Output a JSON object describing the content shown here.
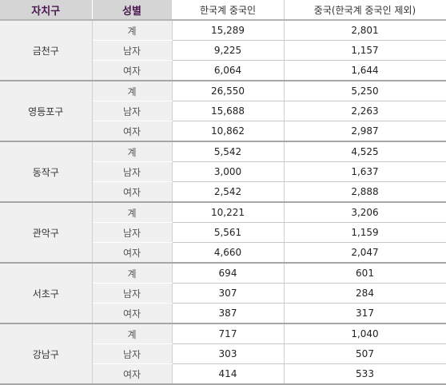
{
  "header": {
    "col_region": "자치구",
    "col_gender": "성별",
    "col_korean_chinese": "한국계 중국인",
    "col_chinese_excl": "중국(한국계 중국인 제외)"
  },
  "groups": [
    {
      "region": "금천구",
      "rows": [
        {
          "gender": "계",
          "korean_chinese": "15,289",
          "chinese_excl": "2,801"
        },
        {
          "gender": "남자",
          "korean_chinese": "9,225",
          "chinese_excl": "1,157"
        },
        {
          "gender": "여자",
          "korean_chinese": "6,064",
          "chinese_excl": "1,644"
        }
      ]
    },
    {
      "region": "영등포구",
      "rows": [
        {
          "gender": "계",
          "korean_chinese": "26,550",
          "chinese_excl": "5,250"
        },
        {
          "gender": "남자",
          "korean_chinese": "15,688",
          "chinese_excl": "2,263"
        },
        {
          "gender": "여자",
          "korean_chinese": "10,862",
          "chinese_excl": "2,987"
        }
      ]
    },
    {
      "region": "동작구",
      "rows": [
        {
          "gender": "계",
          "korean_chinese": "5,542",
          "chinese_excl": "4,525"
        },
        {
          "gender": "남자",
          "korean_chinese": "3,000",
          "chinese_excl": "1,637"
        },
        {
          "gender": "여자",
          "korean_chinese": "2,542",
          "chinese_excl": "2,888"
        }
      ]
    },
    {
      "region": "관악구",
      "rows": [
        {
          "gender": "계",
          "korean_chinese": "10,221",
          "chinese_excl": "3,206"
        },
        {
          "gender": "남자",
          "korean_chinese": "5,561",
          "chinese_excl": "1,159"
        },
        {
          "gender": "여자",
          "korean_chinese": "4,660",
          "chinese_excl": "2,047"
        }
      ]
    },
    {
      "region": "서초구",
      "rows": [
        {
          "gender": "계",
          "korean_chinese": "694",
          "chinese_excl": "601"
        },
        {
          "gender": "남자",
          "korean_chinese": "307",
          "chinese_excl": "284"
        },
        {
          "gender": "여자",
          "korean_chinese": "387",
          "chinese_excl": "317"
        }
      ]
    },
    {
      "region": "강남구",
      "rows": [
        {
          "gender": "계",
          "korean_chinese": "717",
          "chinese_excl": "1,040"
        },
        {
          "gender": "남자",
          "korean_chinese": "303",
          "chinese_excl": "507"
        },
        {
          "gender": "여자",
          "korean_chinese": "414",
          "chinese_excl": "533"
        }
      ]
    }
  ]
}
